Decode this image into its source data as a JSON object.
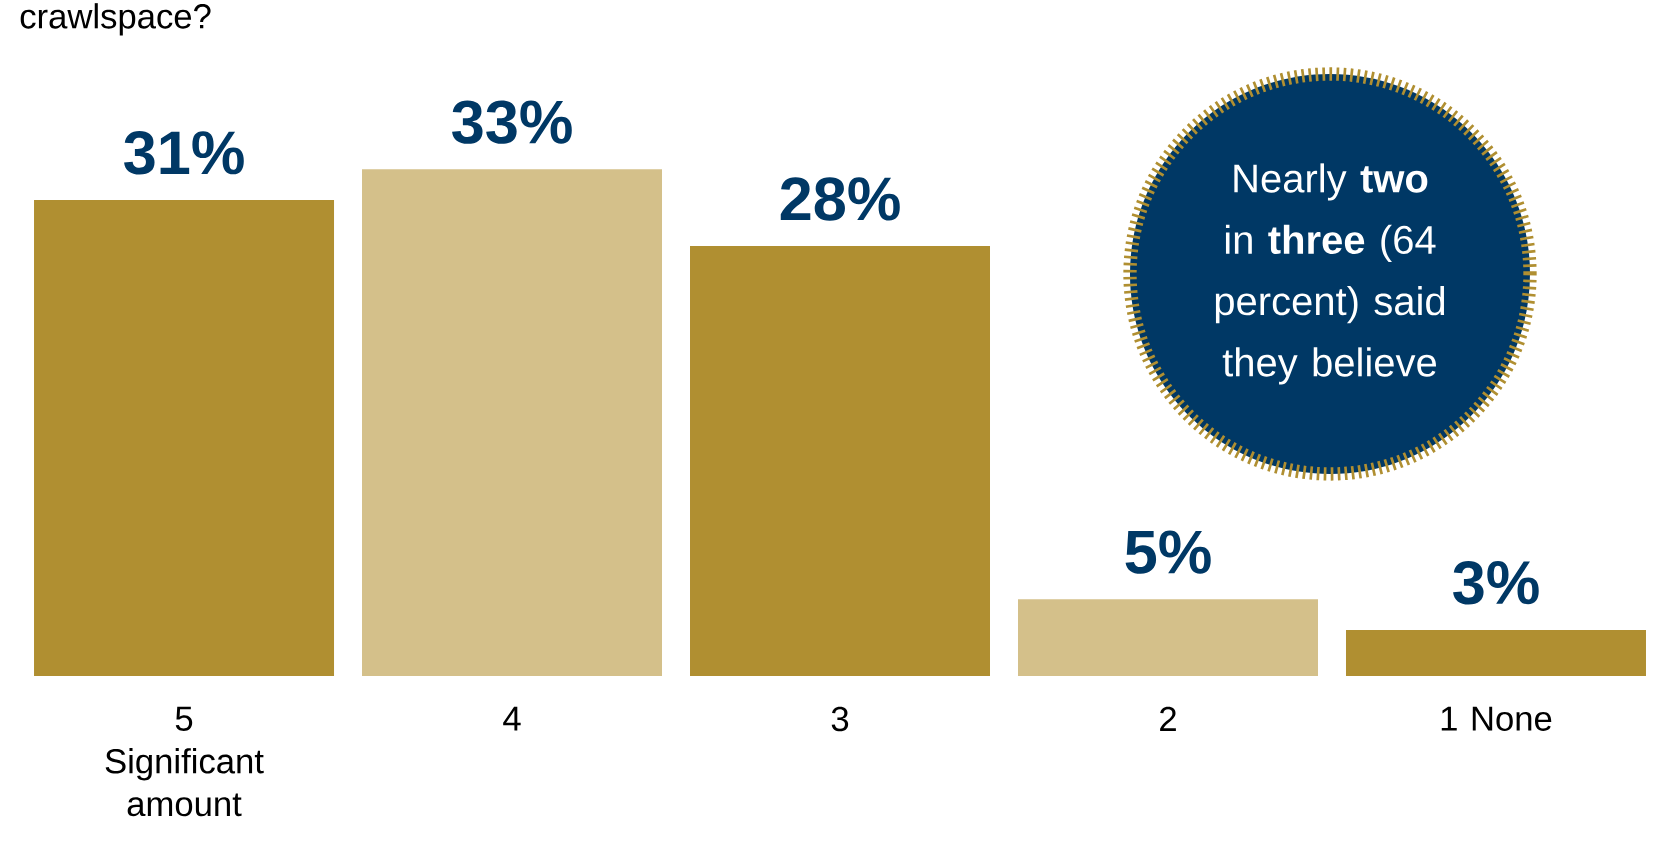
{
  "chart_data": {
    "type": "bar",
    "title": "crawlspace?",
    "categories": [
      "5 Significant amount",
      "4",
      "3",
      "2",
      "1 None"
    ],
    "values": [
      31,
      33,
      28,
      5,
      3
    ],
    "colors": [
      "#b08f31",
      "#d4c08a",
      "#b08f31",
      "#d4c08a",
      "#b08f31"
    ],
    "value_labels": [
      "31%",
      "33%",
      "28%",
      "5%",
      "3%"
    ],
    "annotations": [
      "Nearly **two** in **three** (64 percent) said they believe"
    ]
  }
}
